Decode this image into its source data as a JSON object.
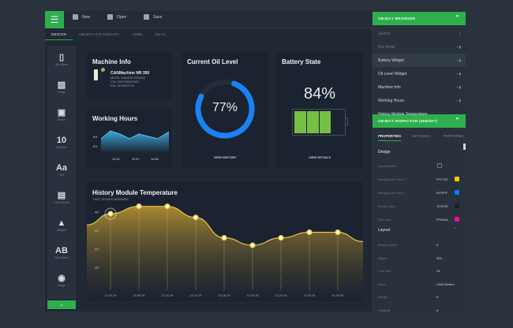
{
  "toolbar": {
    "new": "New",
    "open": "Open",
    "save": "Save"
  },
  "tabs": [
    "DESIGN",
    "OBJECT DICTIONARY",
    "JOBS",
    "KEYS"
  ],
  "sidebar": [
    {
      "icon": "bar-meter-icon",
      "glyph": "▯",
      "label": "Bar Meter"
    },
    {
      "icon": "image-icon",
      "glyph": "▨",
      "label": "Image"
    },
    {
      "icon": "button-icon",
      "glyph": "▣",
      "label": "Button"
    },
    {
      "icon": "numeric-icon",
      "glyph": "10",
      "label": "Numeric"
    },
    {
      "icon": "text-icon",
      "glyph": "Aa",
      "label": "Text"
    },
    {
      "icon": "can-monitor-icon",
      "glyph": "▤",
      "label": "CAN Monitor"
    },
    {
      "icon": "shapes-icon",
      "glyph": "▲",
      "label": "Shapes"
    },
    {
      "icon": "text-switch-icon",
      "glyph": "AB",
      "label": "Text Switch"
    },
    {
      "icon": "gauge-icon",
      "glyph": "◉",
      "label": "Gauge"
    }
  ],
  "machine": {
    "title": "Machine Info",
    "name": "CANMachine NR 350",
    "lines": [
      "MODE: 5501040 0000000",
      "VIN: 2287000007003",
      "PIN: 01000007C0"
    ]
  },
  "working": {
    "title": "Working Hours",
    "y": [
      "8 h",
      "6 h"
    ],
    "x": [
      "12.10",
      "12.07",
      "12.08"
    ]
  },
  "oil": {
    "title": "Current Oil Level",
    "value": 77,
    "label": "77%",
    "link": "VIEW HISTORY",
    "color": "#1a82f5"
  },
  "battery": {
    "title": "Battery State",
    "value": 84,
    "label": "84%",
    "link": "VIEW DETAILS",
    "color": "#74c044"
  },
  "chart_data": {
    "type": "area",
    "title": "History Module Temperature",
    "subtitle": "LAST 30 DAYS AVERAGE",
    "x": [
      "12.02.19",
      "12.06.19",
      "12.10.19",
      "12.14.19",
      "12.18.19",
      "12.22.19",
      "12.24.19",
      "12.28.19",
      "01.03.20"
    ],
    "values": [
      39,
      43,
      43,
      37,
      26,
      22,
      26,
      29,
      29
    ],
    "yticks": [
      "40°",
      "30°",
      "20°",
      "10°"
    ],
    "ylim": [
      5,
      45
    ],
    "color": "#e8c44a",
    "grid": false
  },
  "browser": {
    "title": "OBJECT BROWSER",
    "search_placeholder": "Search",
    "items": [
      "Bar Meter",
      "Battery Widget",
      "Oil Level Widget",
      "Machine Info",
      "Working Hours",
      "History Module Temperature"
    ],
    "selected": "Battery Widget"
  },
  "inspector": {
    "title": "OBJECT INSPECTOR (WIDGET)",
    "tabs": [
      "PROPERTIES",
      "SETTINGS",
      "PERFORMANCE"
    ],
    "design_label": "Design",
    "layout_label": "Layout",
    "design": [
      {
        "name": "Show Border",
        "value": "",
        "color": ""
      },
      {
        "name": "Background color 1",
        "value": "FFC700",
        "color": "#ffc700"
      },
      {
        "name": "Background color 2",
        "value": "097EFF",
        "color": "#097eff"
      },
      {
        "name": "Border color",
        "value": "1C1E1E",
        "color": "#1c1e1e"
      },
      {
        "name": "Text color",
        "value": "FF00AA",
        "color": "#ff00aa"
      }
    ],
    "layout": [
      {
        "name": "Border radius",
        "value": "8"
      },
      {
        "name": "Height",
        "value": "300"
      },
      {
        "name": "Font size",
        "value": "14"
      },
      {
        "name": "Name",
        "value": "CAN Monitor"
      },
      {
        "name": "Margin",
        "value": "6"
      },
      {
        "name": "Padding",
        "value": "8"
      }
    ]
  }
}
